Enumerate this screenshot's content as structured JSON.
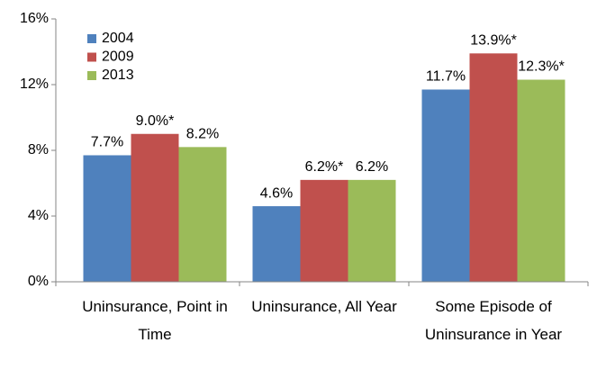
{
  "chart_data": {
    "type": "bar",
    "categories": [
      "Uninsurance, Point in Time",
      "Uninsurance, All Year",
      "Some Episode of Uninsurance in Year"
    ],
    "series": [
      {
        "name": "2004",
        "color": "#4f81bd",
        "values": [
          7.7,
          4.6,
          11.7
        ],
        "value_labels": [
          "7.7%",
          "4.6%",
          "11.7%"
        ]
      },
      {
        "name": "2009",
        "color": "#c0504d",
        "values": [
          9.0,
          6.2,
          13.9
        ],
        "value_labels": [
          "9.0%*",
          "6.2%*",
          "13.9%*"
        ]
      },
      {
        "name": "2013",
        "color": "#9bbb59",
        "values": [
          8.2,
          6.2,
          12.3
        ],
        "value_labels": [
          "8.2%",
          "6.2%",
          "12.3%*"
        ]
      }
    ],
    "ylim": [
      0,
      16
    ],
    "yticks": [
      {
        "value": 0,
        "label": "0%"
      },
      {
        "value": 4,
        "label": "4%"
      },
      {
        "value": 8,
        "label": "8%"
      },
      {
        "value": 12,
        "label": "12%"
      },
      {
        "value": 16,
        "label": "16%"
      }
    ],
    "legend": "top-left"
  }
}
